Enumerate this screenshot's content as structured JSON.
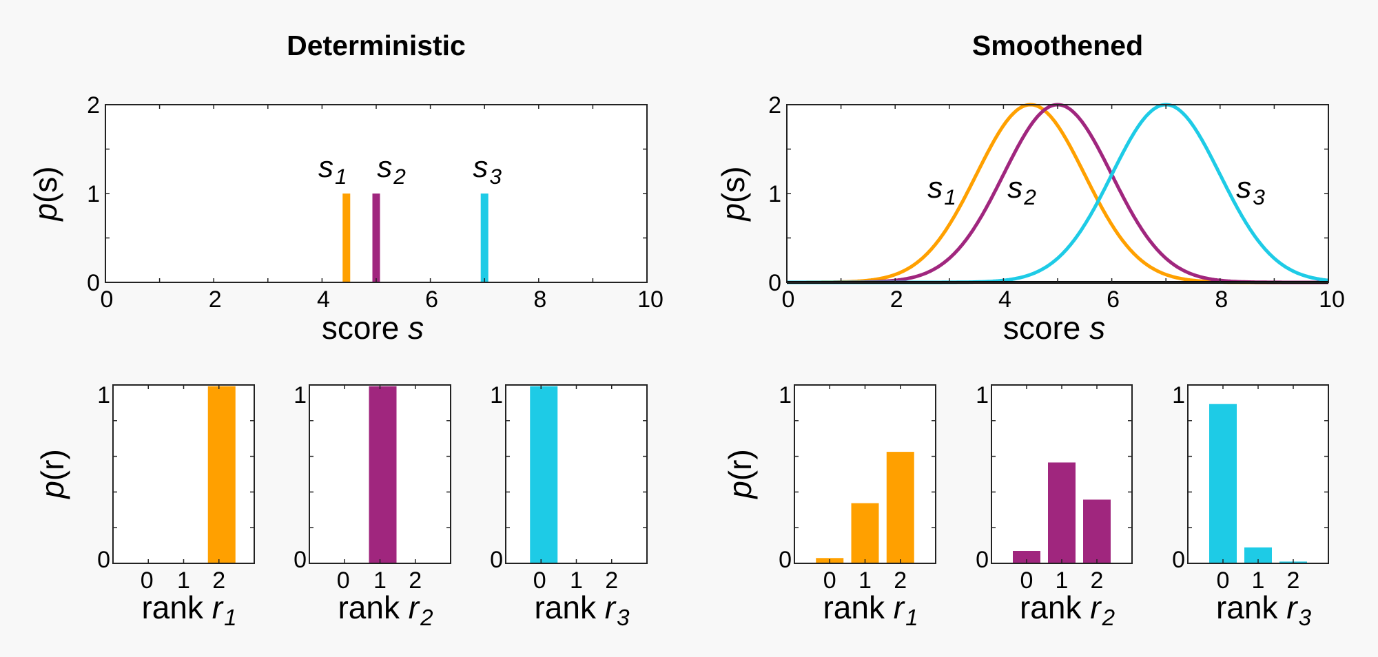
{
  "colors": {
    "s1": "#FFA000",
    "s2": "#A0267E",
    "s3": "#1ECBE6"
  },
  "chart_data": [
    {
      "panel": "deterministic-score",
      "type": "bar",
      "title": "Deterministic",
      "xlabel": "score s",
      "ylabel": "p(s)",
      "xlim": [
        0,
        10
      ],
      "ylim": [
        0,
        2
      ],
      "xticks": [
        0,
        2,
        4,
        6,
        8,
        10
      ],
      "yticks": [
        0,
        1,
        2
      ],
      "series": [
        {
          "name": "s1",
          "label": "s",
          "sub": "1",
          "x": 4.45,
          "value": 1
        },
        {
          "name": "s2",
          "label": "s",
          "sub": "2",
          "x": 5.0,
          "value": 1
        },
        {
          "name": "s3",
          "label": "s",
          "sub": "3",
          "x": 7.0,
          "value": 1
        }
      ]
    },
    {
      "panel": "smoothened-score",
      "type": "line",
      "title": "Smoothened",
      "xlabel": "score s",
      "ylabel": "p(s)",
      "xlim": [
        0,
        10
      ],
      "ylim": [
        0,
        2
      ],
      "xticks": [
        0,
        2,
        4,
        6,
        8,
        10
      ],
      "yticks": [
        0,
        1,
        2
      ],
      "series": [
        {
          "name": "s1",
          "label": "s",
          "sub": "1",
          "peak_x": 4.5,
          "peak_y": 2,
          "sigma": 1.0
        },
        {
          "name": "s2",
          "label": "s",
          "sub": "2",
          "peak_x": 5.0,
          "peak_y": 2,
          "sigma": 1.0
        },
        {
          "name": "s3",
          "label": "s",
          "sub": "3",
          "peak_x": 7.0,
          "peak_y": 2,
          "sigma": 1.0
        }
      ]
    },
    {
      "panel": "deterministic-rank",
      "type": "bar",
      "ylabel": "p(r)",
      "ylim": [
        0,
        1
      ],
      "categories": [
        "0",
        "1",
        "2"
      ],
      "yticks": [
        0,
        1
      ],
      "series": [
        {
          "name": "s1",
          "xlabel": "rank r",
          "sub": "1",
          "values": [
            0,
            0,
            1
          ]
        },
        {
          "name": "s2",
          "xlabel": "rank r",
          "sub": "2",
          "values": [
            0,
            1,
            0
          ]
        },
        {
          "name": "s3",
          "xlabel": "rank r",
          "sub": "3",
          "values": [
            1,
            0,
            0
          ]
        }
      ]
    },
    {
      "panel": "smoothened-rank",
      "type": "bar",
      "ylabel": "p(r)",
      "ylim": [
        0,
        1
      ],
      "categories": [
        "0",
        "1",
        "2"
      ],
      "yticks": [
        0,
        1
      ],
      "series": [
        {
          "name": "s1",
          "xlabel": "rank r",
          "sub": "1",
          "values": [
            0.03,
            0.34,
            0.63
          ]
        },
        {
          "name": "s2",
          "xlabel": "rank r",
          "sub": "2",
          "values": [
            0.07,
            0.57,
            0.36
          ]
        },
        {
          "name": "s3",
          "xlabel": "rank r",
          "sub": "3",
          "values": [
            0.9,
            0.09,
            0.01
          ]
        }
      ]
    }
  ]
}
